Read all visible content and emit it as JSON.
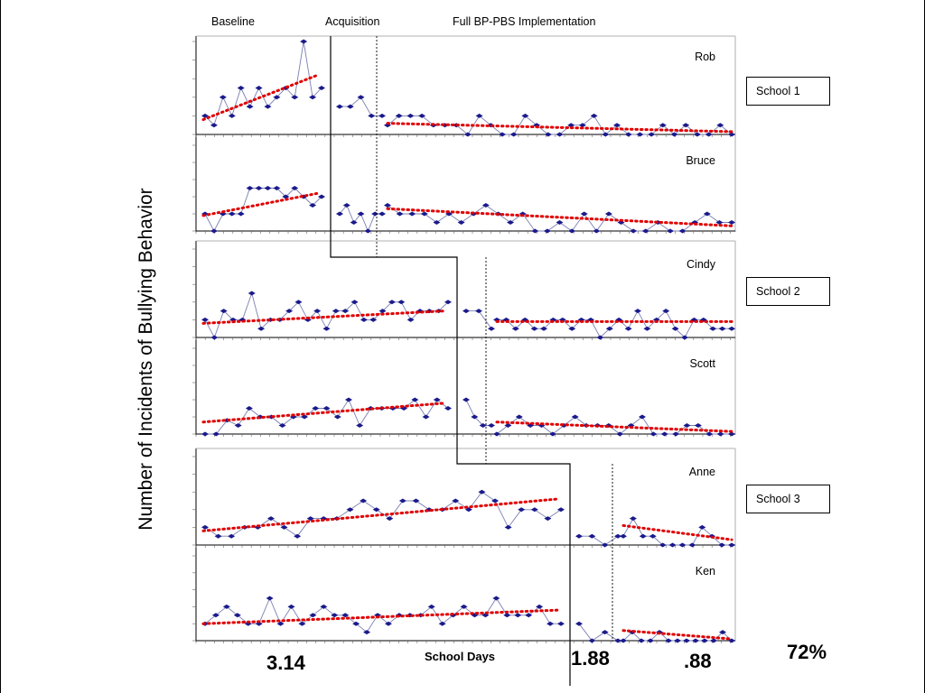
{
  "phases": {
    "baseline": "Baseline",
    "acquisition": "Acquisition",
    "full": "Full BP-PBS Implementation"
  },
  "y_axis_label": "Number of Incidents of Bullying Behavior",
  "x_axis_label": "School Days",
  "schools": [
    "School 1",
    "School 2",
    "School 3"
  ],
  "stats": {
    "baseline_mean": "3.14",
    "acquisition_mean": "1.88",
    "full_mean": ".88",
    "reduction": "72%"
  },
  "colors": {
    "data_line": "#7a7fb0",
    "marker": "#1a1a8c",
    "trend": "#e00000",
    "axis": "#000000",
    "tick": "#666666"
  },
  "chart_data": {
    "type": "line",
    "x_unit": "School Days",
    "y_unit": "Number of Incidents of Bullying Behavior",
    "ylim": [
      0,
      5
    ],
    "panels": [
      {
        "name": "Rob",
        "school": "School 1",
        "baseline": [
          1,
          0.5,
          2,
          1,
          2.5,
          1.5,
          2.5,
          1.5,
          2,
          2.5,
          2,
          5,
          2,
          2.5
        ],
        "acquisition": [
          1.5,
          1.5,
          2,
          1,
          1
        ],
        "full": [
          0.5,
          1,
          1,
          1,
          0.5,
          0.5,
          0.5,
          0,
          1,
          0.5,
          0,
          0,
          1,
          0.5,
          0,
          0,
          0.5,
          0.5,
          1,
          0,
          0.5,
          0,
          0,
          0,
          0.5,
          0,
          0.5,
          0,
          0,
          0.5,
          0
        ],
        "trend_baseline": [
          0.8,
          3.2
        ],
        "trend_full": [
          0.6,
          0.15
        ]
      },
      {
        "name": "Bruce",
        "school": "School 1",
        "baseline": [
          1,
          0,
          1,
          1,
          1,
          2.5,
          2.5,
          2.5,
          2.5,
          2,
          2.5,
          2,
          1.5,
          2
        ],
        "acquisition": [
          1,
          1.5,
          0.5,
          1,
          0,
          1,
          1
        ],
        "full": [
          1.5,
          1,
          1,
          1,
          0.5,
          1,
          0.5,
          1,
          1.5,
          1,
          0.5,
          1,
          0,
          0,
          0.5,
          0,
          1,
          0,
          1,
          0.5,
          0,
          0,
          0.5,
          0,
          0,
          0.5,
          1,
          0.5,
          0.5
        ],
        "trend_baseline": [
          0.9,
          2.2
        ],
        "trend_full": [
          1.3,
          0.3
        ]
      },
      {
        "name": "Cindy",
        "school": "School 2",
        "baseline": [
          1,
          0,
          1.5,
          1,
          1,
          2.5,
          0.5,
          1,
          1,
          1.5,
          2,
          1,
          1.5,
          0.5,
          1.5,
          1.5,
          2,
          1,
          1,
          1.5,
          2,
          2,
          1,
          1.5,
          1.5,
          1.5,
          2
        ],
        "acquisition": [
          1.5,
          1.5,
          0.5
        ],
        "full": [
          1,
          1,
          0.5,
          1,
          0.5,
          0.5,
          1,
          1,
          0.5,
          1,
          1,
          0,
          0.5,
          1,
          0.5,
          1.5,
          0.5,
          1,
          1.5,
          0.5,
          0,
          1,
          1,
          0.5,
          0.5,
          0.5
        ],
        "trend_baseline": [
          0.8,
          1.5
        ],
        "trend_full": [
          0.9,
          0.9
        ]
      },
      {
        "name": "Scott",
        "school": "School 2",
        "baseline": [
          0,
          0,
          0.8,
          0.5,
          1.5,
          1,
          1,
          0.5,
          1,
          1,
          1.5,
          1.5,
          1,
          2,
          0.5,
          1.5,
          1.5,
          1.5,
          1.5,
          2,
          1,
          2,
          1.5
        ],
        "acquisition": [
          2,
          1,
          0.5,
          0.5
        ],
        "full": [
          0,
          0.5,
          1,
          0.5,
          0.5,
          0,
          0.5,
          1,
          0.5,
          0.5,
          0.5,
          0,
          0.5,
          1,
          0,
          0,
          0,
          0.5,
          0.5,
          0,
          0,
          0
        ],
        "trend_baseline": [
          0.7,
          1.8
        ],
        "trend_full": [
          0.7,
          0.15
        ]
      },
      {
        "name": "Anne",
        "school": "School 3",
        "baseline": [
          1,
          0.5,
          0.5,
          1,
          1,
          1.5,
          1,
          0.5,
          1.5,
          1.5,
          1.5,
          2,
          2.5,
          2,
          1.5,
          2.5,
          2.5,
          2,
          2,
          2.5,
          2,
          3,
          2.5,
          1,
          2,
          2,
          1.5,
          2
        ],
        "acquisition": [
          0.5,
          0.5,
          0,
          0.5
        ],
        "full": [
          0.5,
          1.5,
          0.5,
          0.5,
          0,
          0,
          0,
          0,
          1,
          0.5,
          0,
          0
        ],
        "trend_baseline": [
          0.8,
          2.6
        ],
        "trend_full": [
          1.1,
          0.3
        ]
      },
      {
        "name": "Ken",
        "school": "School 3",
        "baseline": [
          1,
          1.5,
          2,
          1.5,
          1,
          1,
          2.5,
          1,
          2,
          1,
          1.5,
          2,
          1.5,
          1.5,
          1,
          0.5,
          1.5,
          1,
          1.5,
          1.5,
          1.5,
          2,
          1,
          1.5,
          2,
          1.5,
          1.5,
          2.5,
          1.5,
          1.5,
          1.5,
          2,
          1,
          1
        ],
        "acquisition": [
          1,
          0,
          0.5,
          0
        ],
        "full": [
          0,
          0.5,
          0,
          0,
          0.5,
          0,
          0,
          0,
          0,
          0,
          0,
          0.5,
          0
        ],
        "trend_baseline": [
          1,
          1.8
        ],
        "trend_full": [
          0.6,
          0.1
        ]
      }
    ]
  }
}
